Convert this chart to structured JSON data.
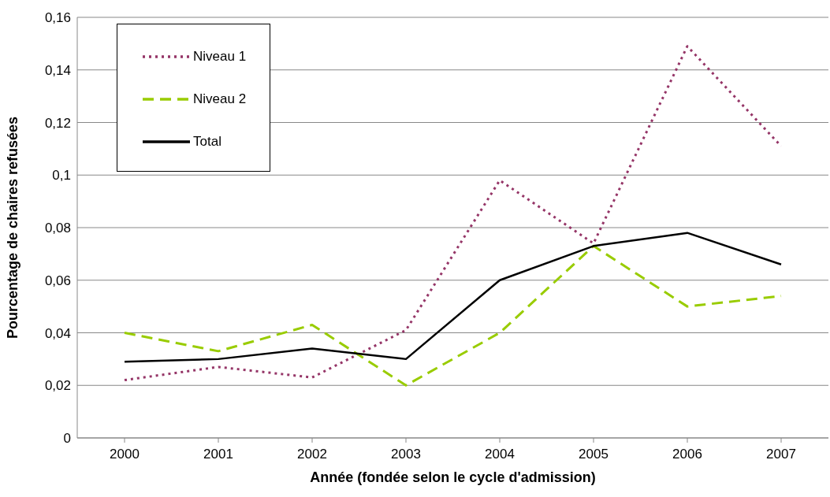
{
  "chart_data": {
    "type": "line",
    "xlabel": "Année (fondée selon le cycle d'admission)",
    "ylabel": "Pourcentage de chaires refusées",
    "categories": [
      "2000",
      "2001",
      "2002",
      "2003",
      "2004",
      "2005",
      "2006",
      "2007"
    ],
    "series": [
      {
        "name": "Niveau 1",
        "color": "#953567",
        "line_style": "dotted",
        "values": [
          0.022,
          0.027,
          0.023,
          0.041,
          0.098,
          0.074,
          0.149,
          0.111
        ]
      },
      {
        "name": "Niveau 2",
        "color": "#99cc00",
        "line_style": "dashed",
        "values": [
          0.04,
          0.033,
          0.043,
          0.02,
          0.04,
          0.073,
          0.05,
          0.054
        ]
      },
      {
        "name": "Total",
        "color": "#000000",
        "line_style": "solid",
        "values": [
          0.029,
          0.03,
          0.034,
          0.03,
          0.06,
          0.073,
          0.078,
          0.066
        ]
      }
    ],
    "ylim": [
      0,
      0.16
    ],
    "yticks": [
      0,
      {
        "value": 0.02,
        "label": "0,02"
      },
      {
        "value": 0.04,
        "label": "0,04"
      },
      {
        "value": 0.06,
        "label": "0,06"
      },
      {
        "value": 0.08,
        "label": "0,08"
      },
      {
        "value": 0.1,
        "label": "0,1"
      },
      {
        "value": 0.12,
        "label": "0,12"
      },
      {
        "value": 0.14,
        "label": "0,14"
      },
      {
        "value": 0.16,
        "label": "0,16"
      }
    ],
    "grid": "y",
    "legend": "top left",
    "marker": "none"
  }
}
